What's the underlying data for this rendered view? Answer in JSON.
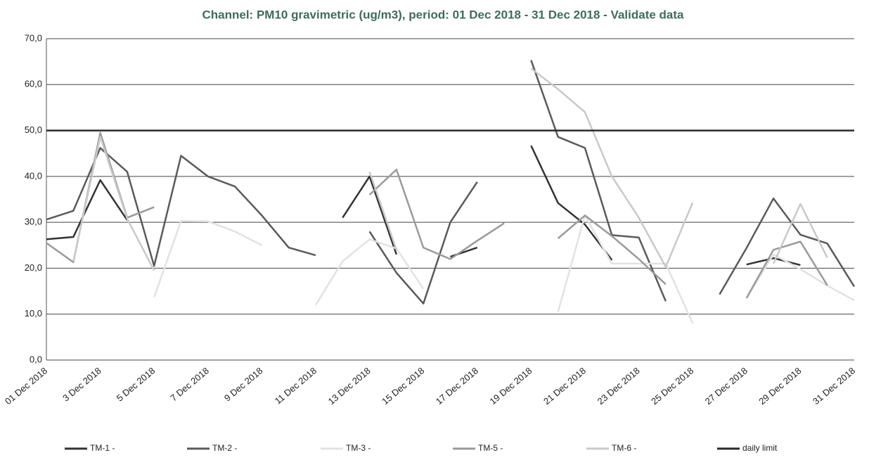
{
  "chart_data": {
    "type": "line",
    "title": "Channel: PM10 gravimetric (ug/m3), period: 01 Dec 2018 - 31 Dec 2018 - Validate data",
    "categories": [
      "01 Dec 2018",
      null,
      "3 Dec 2018",
      null,
      "5 Dec 2018",
      null,
      "7 Dec 2018",
      null,
      "9 Dec 2018",
      null,
      "11 Dec 2018",
      null,
      "13 Dec 2018",
      null,
      "15 Dec 2018",
      null,
      "17 Dec 2018",
      null,
      "19 Dec 2018",
      null,
      "21 Dec 2018",
      null,
      "23 Dec 2018",
      null,
      "25 Dec 2018",
      null,
      "27 Dec 2018",
      null,
      "29 Dec 2018",
      null,
      "31 Dec 2018"
    ],
    "series": [
      {
        "name": "TM-1 -",
        "color": "#333333",
        "values": [
          26.3,
          26.8,
          39.2,
          30.5,
          null,
          null,
          null,
          null,
          null,
          null,
          null,
          31.0,
          40.0,
          23.0,
          null,
          22.5,
          24.5,
          null,
          46.7,
          34.2,
          29.5,
          21.8,
          null,
          null,
          null,
          null,
          20.8,
          22.2,
          20.7,
          null,
          null
        ]
      },
      {
        "name": "TM-2 -",
        "color": "#5a5a5a",
        "values": [
          30.6,
          32.5,
          46.2,
          41.0,
          20.5,
          44.5,
          40.0,
          37.8,
          31.5,
          24.5,
          22.8,
          null,
          28.0,
          19.0,
          12.3,
          30.0,
          38.8,
          null,
          65.3,
          48.6,
          46.2,
          27.2,
          26.7,
          12.8,
          null,
          14.3,
          24.4,
          35.2,
          27.3,
          25.4,
          16.0
        ]
      },
      {
        "name": "TM-3 -",
        "color": "#e2e2e2",
        "values": [
          null,
          null,
          null,
          null,
          13.7,
          30.3,
          30.2,
          28.0,
          25.0,
          null,
          12.0,
          21.5,
          26.3,
          24.3,
          15.5,
          null,
          null,
          null,
          null,
          10.5,
          31.5,
          21.0,
          21.0,
          21.0,
          8.0,
          null,
          13.5,
          23.0,
          19.8,
          16.2,
          13.0
        ]
      },
      {
        "name": "TM-5 -",
        "color": "#9a9a9a",
        "values": [
          25.5,
          21.3,
          49.5,
          31.0,
          33.3,
          null,
          null,
          null,
          null,
          null,
          null,
          null,
          36.0,
          41.5,
          24.5,
          22.0,
          26.0,
          29.8,
          null,
          26.5,
          31.5,
          27.0,
          22.0,
          16.5,
          null,
          null,
          13.5,
          24.0,
          25.8,
          16.3,
          null
        ]
      },
      {
        "name": "TM-6 -",
        "color": "#c9c9c9",
        "values": [
          null,
          21.5,
          48.6,
          30.8,
          19.5,
          null,
          null,
          null,
          null,
          null,
          null,
          null,
          41.0,
          24.0,
          null,
          null,
          null,
          null,
          63.5,
          59.0,
          54.0,
          40.0,
          31.0,
          20.3,
          34.3,
          null,
          null,
          21.0,
          34.0,
          22.3,
          null
        ]
      },
      {
        "name": "daily limit",
        "color": "#2a2a2a",
        "values": [
          50,
          50,
          50,
          50,
          50,
          50,
          50,
          50,
          50,
          50,
          50,
          50,
          50,
          50,
          50,
          50,
          50,
          50,
          50,
          50,
          50,
          50,
          50,
          50,
          50,
          50,
          50,
          50,
          50,
          50,
          50
        ]
      }
    ],
    "ylim": [
      0,
      70
    ],
    "yticks": [
      {
        "value": 0,
        "label": "0,0"
      },
      {
        "value": 10,
        "label": "10,0"
      },
      {
        "value": 20,
        "label": "20,0"
      },
      {
        "value": 30,
        "label": "30,0"
      },
      {
        "value": 40,
        "label": "40,0"
      },
      {
        "value": 50,
        "label": "50,0"
      },
      {
        "value": 60,
        "label": "60,0"
      },
      {
        "value": 70,
        "label": "70,0"
      }
    ],
    "grid": true
  }
}
